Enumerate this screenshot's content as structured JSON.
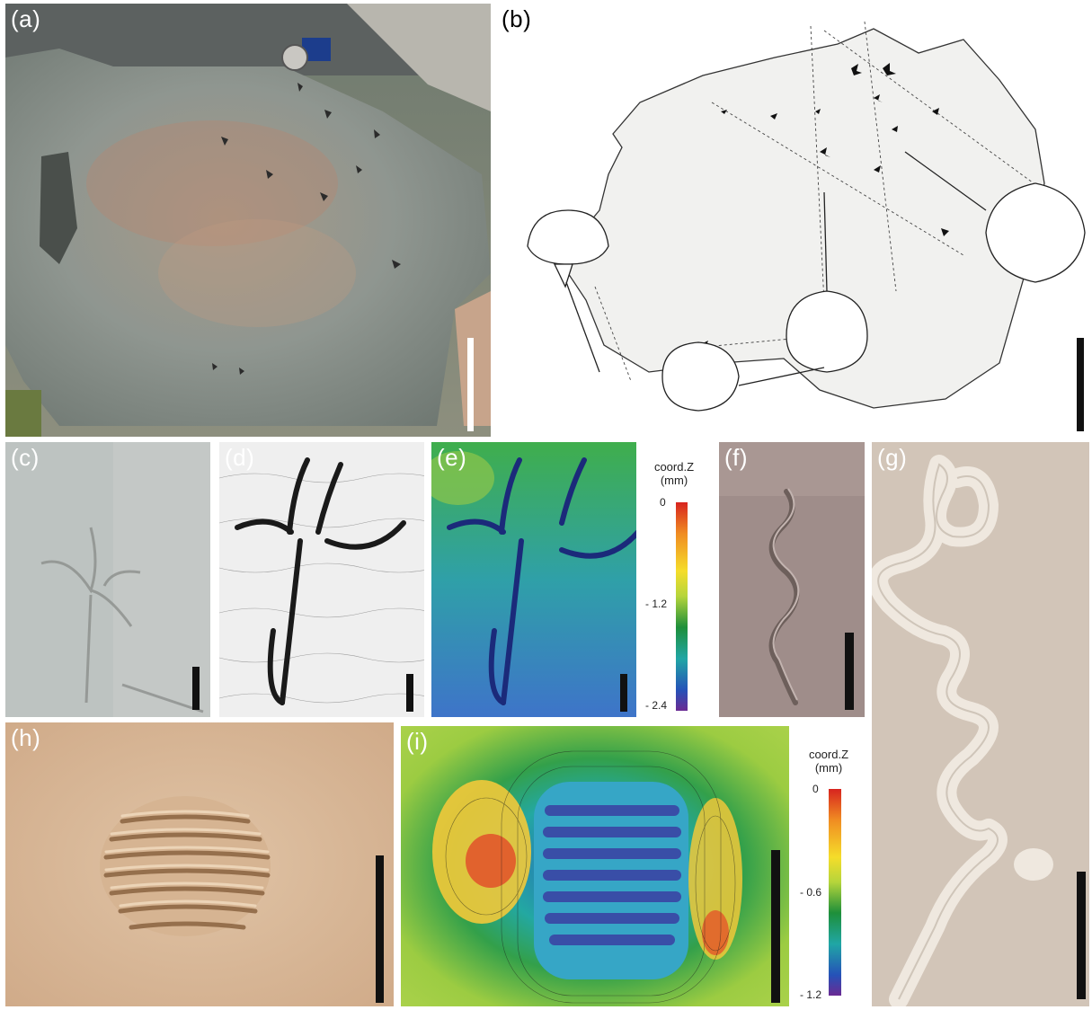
{
  "panels": {
    "a": {
      "label": "(a)"
    },
    "b": {
      "label": "(b)"
    },
    "c": {
      "label": "(c)"
    },
    "d": {
      "label": "(d)"
    },
    "e": {
      "label": "(e)"
    },
    "f": {
      "label": "(f)"
    },
    "g": {
      "label": "(g)"
    },
    "h": {
      "label": "(h)"
    },
    "i": {
      "label": "(i)"
    }
  },
  "colorbar_e": {
    "title_line1": "coord.Z",
    "title_line2": "(mm)",
    "tick_top": "0",
    "tick_mid": "- 1.2",
    "tick_bottom": "- 2.4"
  },
  "colorbar_i": {
    "title_line1": "coord.Z",
    "title_line2": "(mm)",
    "tick_top": "0",
    "tick_mid": "- 0.6",
    "tick_bottom": "- 1.2"
  },
  "colors": {
    "scale_bar_dark": "#111111",
    "scale_bar_light": "#ffffff",
    "rock_grey": "#8f9590",
    "sandstone": "#d9b898",
    "slab_beige": "#d8ccbd"
  }
}
